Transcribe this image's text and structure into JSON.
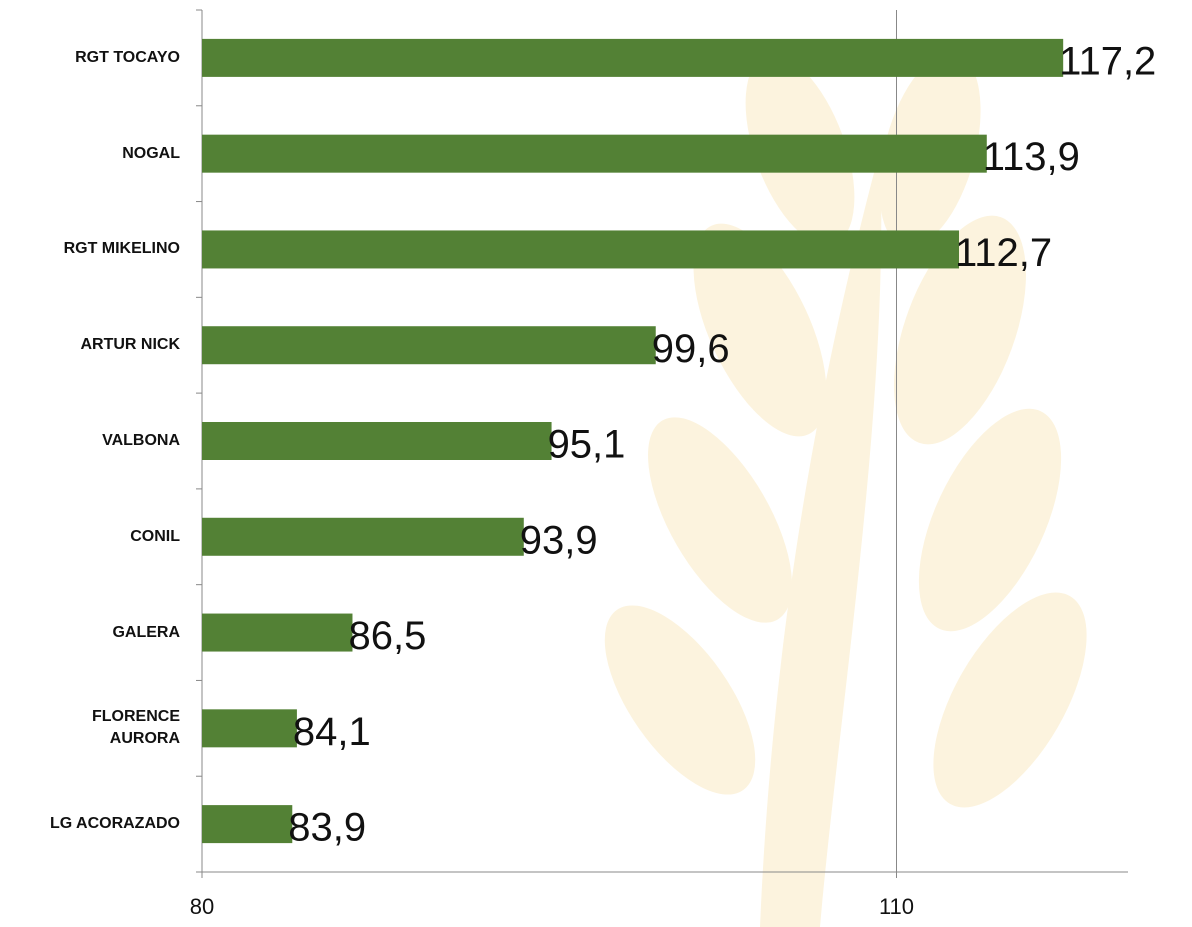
{
  "chart_data": {
    "type": "bar",
    "orientation": "horizontal",
    "categories": [
      "RGT TOCAYO",
      "NOGAL",
      "RGT MIKELINO",
      "ARTUR NICK",
      "VALBONA",
      "CONIL",
      "GALERA",
      "FLORENCE AURORA",
      "LG ACORAZADO"
    ],
    "values": [
      117.2,
      113.9,
      112.7,
      99.6,
      95.1,
      93.9,
      86.5,
      84.1,
      83.9
    ],
    "value_labels": [
      "117,2",
      "113,9",
      "112,7",
      "99,6",
      "95,1",
      "93,9",
      "86,5",
      "84,1",
      "83,9"
    ],
    "color": "#538135",
    "xlim": [
      80,
      120
    ],
    "xticks": [
      80,
      110
    ],
    "grid": true
  }
}
